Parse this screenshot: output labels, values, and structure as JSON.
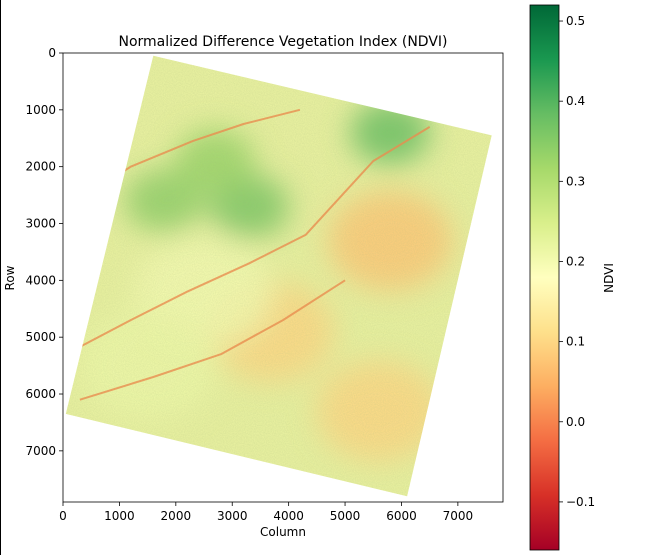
{
  "chart_data": {
    "type": "heatmap",
    "title": "Normalized Difference Vegetation Index (NDVI)",
    "xlabel": "Column",
    "ylabel": "Row",
    "xlim": [
      0,
      7800
    ],
    "ylim": [
      7900,
      0
    ],
    "xticks": [
      0,
      1000,
      2000,
      3000,
      4000,
      5000,
      6000,
      7000
    ],
    "yticks": [
      0,
      1000,
      2000,
      3000,
      4000,
      5000,
      6000,
      7000
    ],
    "colormap": "RdYlGn",
    "colorbar": {
      "label": "NDVI",
      "range": [
        -0.16,
        0.52
      ],
      "ticks": [
        -0.1,
        0.0,
        0.1,
        0.2,
        0.3,
        0.4,
        0.5
      ],
      "tick_labels": [
        "−0.1",
        "0.0",
        "0.1",
        "0.2",
        "0.3",
        "0.4",
        "0.5"
      ]
    },
    "scene_footprint": {
      "corners": [
        {
          "x": 1600,
          "y": 50
        },
        {
          "x": 7600,
          "y": 1450
        },
        {
          "x": 6100,
          "y": 7800
        },
        {
          "x": 50,
          "y": 6350
        }
      ]
    },
    "regions": [
      {
        "description": "higher vegetation patch",
        "x": 3300,
        "y": 2700,
        "ndvi": 0.36
      },
      {
        "description": "higher vegetation patch",
        "x": 1800,
        "y": 2600,
        "ndvi": 0.34
      },
      {
        "description": "higher vegetation patch",
        "x": 5800,
        "y": 1400,
        "ndvi": 0.38
      },
      {
        "description": "higher vegetation patch",
        "x": 2700,
        "y": 1900,
        "ndvi": 0.33
      },
      {
        "description": "lower vegetation area",
        "x": 5800,
        "y": 3300,
        "ndvi": 0.08
      },
      {
        "description": "lower vegetation area",
        "x": 5600,
        "y": 6300,
        "ndvi": 0.1
      },
      {
        "description": "lower vegetation area",
        "x": 3700,
        "y": 4900,
        "ndvi": 0.1
      },
      {
        "description": "moderate background",
        "x": 2500,
        "y": 4200,
        "ndvi": 0.2
      },
      {
        "description": "moderate background",
        "x": 1500,
        "y": 5500,
        "ndvi": 0.21
      }
    ],
    "grid": false
  }
}
